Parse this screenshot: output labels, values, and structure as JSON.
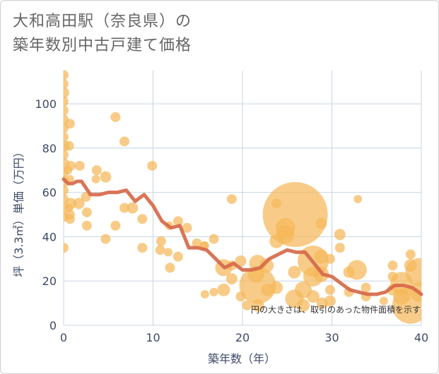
{
  "title_lines": [
    "大和高田駅（奈良県）の",
    "築年数別中古戸建て価格"
  ],
  "note": "円の大きさは、取引のあった物件面積を示す",
  "colors": {
    "bubble": "#f5b85a",
    "line": "#d6694a",
    "grid": "#c8d4e2",
    "plot_bg": "#ffffff",
    "axis_text": "#3d4a66"
  },
  "chart_data": {
    "type": "scatter",
    "title": "大和高田駅（奈良県）の築年数別中古戸建て価格",
    "xlabel": "築年数（年）",
    "ylabel": "坪（3.3㎡）単価（万円）",
    "xlim": [
      0,
      40
    ],
    "ylim": [
      0,
      115
    ],
    "xticks": [
      0,
      10,
      20,
      30,
      40
    ],
    "yticks": [
      0,
      20,
      40,
      60,
      80,
      100
    ],
    "grid": true,
    "series": [
      {
        "type": "bubble",
        "points": [
          {
            "x": 0,
            "y": 113,
            "s": 7
          },
          {
            "x": 0,
            "y": 109,
            "s": 7
          },
          {
            "x": 0,
            "y": 105,
            "s": 8
          },
          {
            "x": 0,
            "y": 101,
            "s": 7
          },
          {
            "x": 0,
            "y": 97,
            "s": 7
          },
          {
            "x": 0,
            "y": 93,
            "s": 7
          },
          {
            "x": 0,
            "y": 89,
            "s": 7
          },
          {
            "x": 0,
            "y": 85,
            "s": 7
          },
          {
            "x": 0,
            "y": 81,
            "s": 8
          },
          {
            "x": 0,
            "y": 77,
            "s": 7
          },
          {
            "x": 0,
            "y": 73,
            "s": 8
          },
          {
            "x": 0,
            "y": 69,
            "s": 7
          },
          {
            "x": 0,
            "y": 65,
            "s": 8
          },
          {
            "x": 0,
            "y": 61,
            "s": 7
          },
          {
            "x": 0,
            "y": 57,
            "s": 7
          },
          {
            "x": 0,
            "y": 53,
            "s": 7
          },
          {
            "x": 0,
            "y": 49,
            "s": 7
          },
          {
            "x": 0,
            "y": 35,
            "s": 7
          },
          {
            "x": 0.7,
            "y": 91,
            "s": 7
          },
          {
            "x": 0.6,
            "y": 81,
            "s": 7
          },
          {
            "x": 0.8,
            "y": 72,
            "s": 7
          },
          {
            "x": 0.5,
            "y": 70,
            "s": 6
          },
          {
            "x": 0.7,
            "y": 66,
            "s": 6
          },
          {
            "x": 0.8,
            "y": 55,
            "s": 8
          },
          {
            "x": 0.6,
            "y": 53,
            "s": 6
          },
          {
            "x": 0.7,
            "y": 50,
            "s": 7
          },
          {
            "x": 0.7,
            "y": 48,
            "s": 7
          },
          {
            "x": 1.8,
            "y": 72,
            "s": 7
          },
          {
            "x": 1.7,
            "y": 55,
            "s": 8
          },
          {
            "x": 2.5,
            "y": 58,
            "s": 7
          },
          {
            "x": 2.6,
            "y": 51,
            "s": 7
          },
          {
            "x": 2.6,
            "y": 45,
            "s": 7
          },
          {
            "x": 3.7,
            "y": 70,
            "s": 7
          },
          {
            "x": 3.6,
            "y": 66,
            "s": 6
          },
          {
            "x": 4.7,
            "y": 67,
            "s": 8
          },
          {
            "x": 4.7,
            "y": 39,
            "s": 7
          },
          {
            "x": 5.8,
            "y": 94,
            "s": 7
          },
          {
            "x": 5.8,
            "y": 45,
            "s": 7
          },
          {
            "x": 6.8,
            "y": 83,
            "s": 7
          },
          {
            "x": 6.8,
            "y": 53,
            "s": 7
          },
          {
            "x": 7.7,
            "y": 53,
            "s": 8
          },
          {
            "x": 8.8,
            "y": 48,
            "s": 7
          },
          {
            "x": 8.8,
            "y": 35,
            "s": 7
          },
          {
            "x": 9.9,
            "y": 72,
            "s": 7
          },
          {
            "x": 10.9,
            "y": 38,
            "s": 7
          },
          {
            "x": 10.8,
            "y": 34,
            "s": 7
          },
          {
            "x": 11.8,
            "y": 45,
            "s": 6
          },
          {
            "x": 11.7,
            "y": 33,
            "s": 6
          },
          {
            "x": 11.9,
            "y": 26,
            "s": 7
          },
          {
            "x": 12.8,
            "y": 47,
            "s": 7
          },
          {
            "x": 12.8,
            "y": 31,
            "s": 7
          },
          {
            "x": 13.8,
            "y": 44,
            "s": 7
          },
          {
            "x": 14.9,
            "y": 37,
            "s": 7
          },
          {
            "x": 15.7,
            "y": 36,
            "s": 6
          },
          {
            "x": 15.8,
            "y": 36,
            "s": 6
          },
          {
            "x": 15.8,
            "y": 14,
            "s": 6
          },
          {
            "x": 16.8,
            "y": 39,
            "s": 7
          },
          {
            "x": 16.8,
            "y": 15,
            "s": 6
          },
          {
            "x": 17.9,
            "y": 26,
            "s": 12
          },
          {
            "x": 17.9,
            "y": 16,
            "s": 9
          },
          {
            "x": 18.8,
            "y": 57,
            "s": 7
          },
          {
            "x": 18.8,
            "y": 27,
            "s": 7
          },
          {
            "x": 18.8,
            "y": 21,
            "s": 8
          },
          {
            "x": 19.8,
            "y": 29,
            "s": 8
          },
          {
            "x": 19.8,
            "y": 13,
            "s": 7
          },
          {
            "x": 20.5,
            "y": 9,
            "s": 7
          },
          {
            "x": 21.5,
            "y": 23,
            "s": 12
          },
          {
            "x": 21.7,
            "y": 28,
            "s": 12
          },
          {
            "x": 21.7,
            "y": 18,
            "s": 26
          },
          {
            "x": 21.7,
            "y": 9,
            "s": 9
          },
          {
            "x": 22.7,
            "y": 27,
            "s": 10
          },
          {
            "x": 22.8,
            "y": 16,
            "s": 9
          },
          {
            "x": 23.8,
            "y": 55,
            "s": 7
          },
          {
            "x": 23.8,
            "y": 38,
            "s": 10
          },
          {
            "x": 23.8,
            "y": 17,
            "s": 9
          },
          {
            "x": 24.8,
            "y": 44,
            "s": 14
          },
          {
            "x": 24.8,
            "y": 41,
            "s": 13
          },
          {
            "x": 25.9,
            "y": 50,
            "s": 46
          },
          {
            "x": 25.8,
            "y": 24,
            "s": 9
          },
          {
            "x": 25.8,
            "y": 12,
            "s": 13
          },
          {
            "x": 26.8,
            "y": 16,
            "s": 12
          },
          {
            "x": 26.8,
            "y": 9,
            "s": 9
          },
          {
            "x": 27.9,
            "y": 29,
            "s": 22
          },
          {
            "x": 27.9,
            "y": 22,
            "s": 14
          },
          {
            "x": 27.9,
            "y": 13,
            "s": 9
          },
          {
            "x": 28.8,
            "y": 46,
            "s": 8
          },
          {
            "x": 28.8,
            "y": 31,
            "s": 10
          },
          {
            "x": 28.8,
            "y": 23,
            "s": 11
          },
          {
            "x": 28.9,
            "y": 10,
            "s": 8
          },
          {
            "x": 29.8,
            "y": 30,
            "s": 7
          },
          {
            "x": 29.8,
            "y": 16,
            "s": 7
          },
          {
            "x": 29.8,
            "y": 11,
            "s": 8
          },
          {
            "x": 30.9,
            "y": 41,
            "s": 8
          },
          {
            "x": 30.9,
            "y": 35,
            "s": 7
          },
          {
            "x": 31.9,
            "y": 24,
            "s": 8
          },
          {
            "x": 31.9,
            "y": 15,
            "s": 7
          },
          {
            "x": 32.9,
            "y": 57,
            "s": 6
          },
          {
            "x": 32.8,
            "y": 25,
            "s": 14
          },
          {
            "x": 33.8,
            "y": 17,
            "s": 7
          },
          {
            "x": 33.8,
            "y": 13,
            "s": 7
          },
          {
            "x": 35.8,
            "y": 11,
            "s": 6
          },
          {
            "x": 36.8,
            "y": 27,
            "s": 7
          },
          {
            "x": 36.8,
            "y": 22,
            "s": 7
          },
          {
            "x": 36.8,
            "y": 16,
            "s": 8
          },
          {
            "x": 37.8,
            "y": 19,
            "s": 16
          },
          {
            "x": 37.8,
            "y": 13,
            "s": 12
          },
          {
            "x": 38.8,
            "y": 32,
            "s": 7
          },
          {
            "x": 38.8,
            "y": 27,
            "s": 9
          },
          {
            "x": 38.8,
            "y": 9,
            "s": 26
          },
          {
            "x": 39.8,
            "y": 24,
            "s": 20
          },
          {
            "x": 39.8,
            "y": 15,
            "s": 14
          }
        ]
      },
      {
        "type": "line",
        "x": [
          0,
          0.5,
          1,
          1.5,
          2,
          3,
          4,
          5,
          6,
          7,
          8,
          9,
          10,
          11,
          12,
          13,
          14,
          15,
          16,
          17,
          18,
          19,
          20,
          21,
          22,
          23,
          24,
          25,
          26,
          27,
          28,
          29,
          30,
          31,
          32,
          33,
          34,
          35,
          36,
          37,
          38,
          39,
          40
        ],
        "y": [
          66,
          64,
          64,
          65,
          65,
          59,
          59,
          60,
          60,
          61,
          56,
          59,
          54,
          47,
          44,
          45,
          35,
          35,
          34,
          30,
          26,
          28,
          25,
          25,
          26,
          30,
          32,
          34,
          33,
          33,
          28,
          23,
          22,
          19,
          16,
          15,
          14,
          14,
          15,
          18,
          18,
          17,
          14
        ]
      }
    ]
  }
}
